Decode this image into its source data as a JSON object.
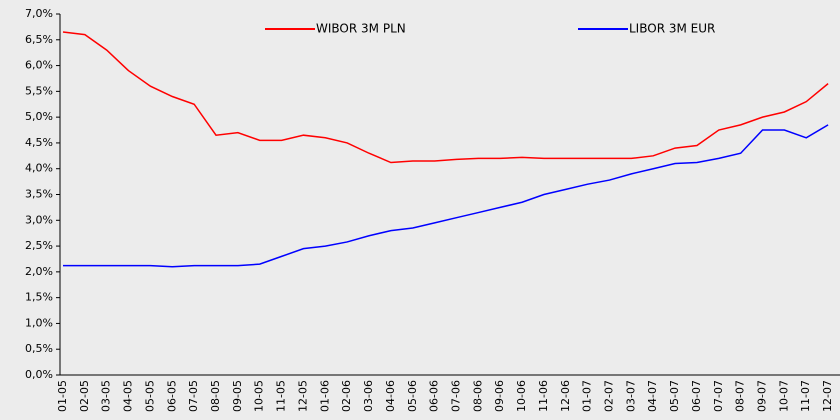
{
  "chart_data": {
    "type": "line",
    "categories": [
      "01-05",
      "02-05",
      "03-05",
      "04-05",
      "05-05",
      "06-05",
      "07-05",
      "08-05",
      "09-05",
      "10-05",
      "11-05",
      "12-05",
      "01-06",
      "02-06",
      "03-06",
      "04-06",
      "05-06",
      "06-06",
      "07-06",
      "08-06",
      "09-06",
      "10-06",
      "11-06",
      "12-06",
      "01-07",
      "02-07",
      "03-07",
      "04-07",
      "05-07",
      "06-07",
      "07-07",
      "08-07",
      "09-07",
      "10-07",
      "11-07",
      "12-07"
    ],
    "series": [
      {
        "name": "WIBOR 3M PLN",
        "color": "#ff0000",
        "values": [
          6.65,
          6.6,
          6.3,
          5.9,
          5.6,
          5.4,
          5.25,
          4.65,
          4.7,
          4.55,
          4.55,
          4.65,
          4.6,
          4.5,
          4.3,
          4.12,
          4.15,
          4.15,
          4.18,
          4.2,
          4.2,
          4.22,
          4.2,
          4.2,
          4.2,
          4.2,
          4.2,
          4.25,
          4.4,
          4.45,
          4.75,
          4.85,
          5.0,
          5.1,
          5.3,
          5.65
        ]
      },
      {
        "name": "LIBOR 3M EUR",
        "color": "#0000ff",
        "values": [
          2.12,
          2.12,
          2.12,
          2.12,
          2.12,
          2.1,
          2.12,
          2.12,
          2.12,
          2.15,
          2.3,
          2.45,
          2.5,
          2.58,
          2.7,
          2.8,
          2.85,
          2.95,
          3.05,
          3.15,
          3.25,
          3.35,
          3.5,
          3.6,
          3.7,
          3.78,
          3.9,
          4.0,
          4.1,
          4.12,
          4.2,
          4.3,
          4.75,
          4.75,
          4.6,
          4.85
        ]
      }
    ],
    "ylim": [
      0,
      7
    ],
    "yticks": [
      {
        "value": 0,
        "label": "0,0%"
      },
      {
        "value": 0.5,
        "label": "0,5%"
      },
      {
        "value": 1,
        "label": "1,0%"
      },
      {
        "value": 1.5,
        "label": "1,5%"
      },
      {
        "value": 2,
        "label": "2,0%"
      },
      {
        "value": 2.5,
        "label": "2,5%"
      },
      {
        "value": 3,
        "label": "3,0%"
      },
      {
        "value": 3.5,
        "label": "3,5%"
      },
      {
        "value": 4,
        "label": "4,0%"
      },
      {
        "value": 4.5,
        "label": "4,5%"
      },
      {
        "value": 5,
        "label": "5,0%"
      },
      {
        "value": 5.5,
        "label": "5,5%"
      },
      {
        "value": 6,
        "label": "6,0%"
      },
      {
        "value": 6.5,
        "label": "6,5%"
      },
      {
        "value": 7,
        "label": "7,0%"
      }
    ],
    "grid": false
  }
}
